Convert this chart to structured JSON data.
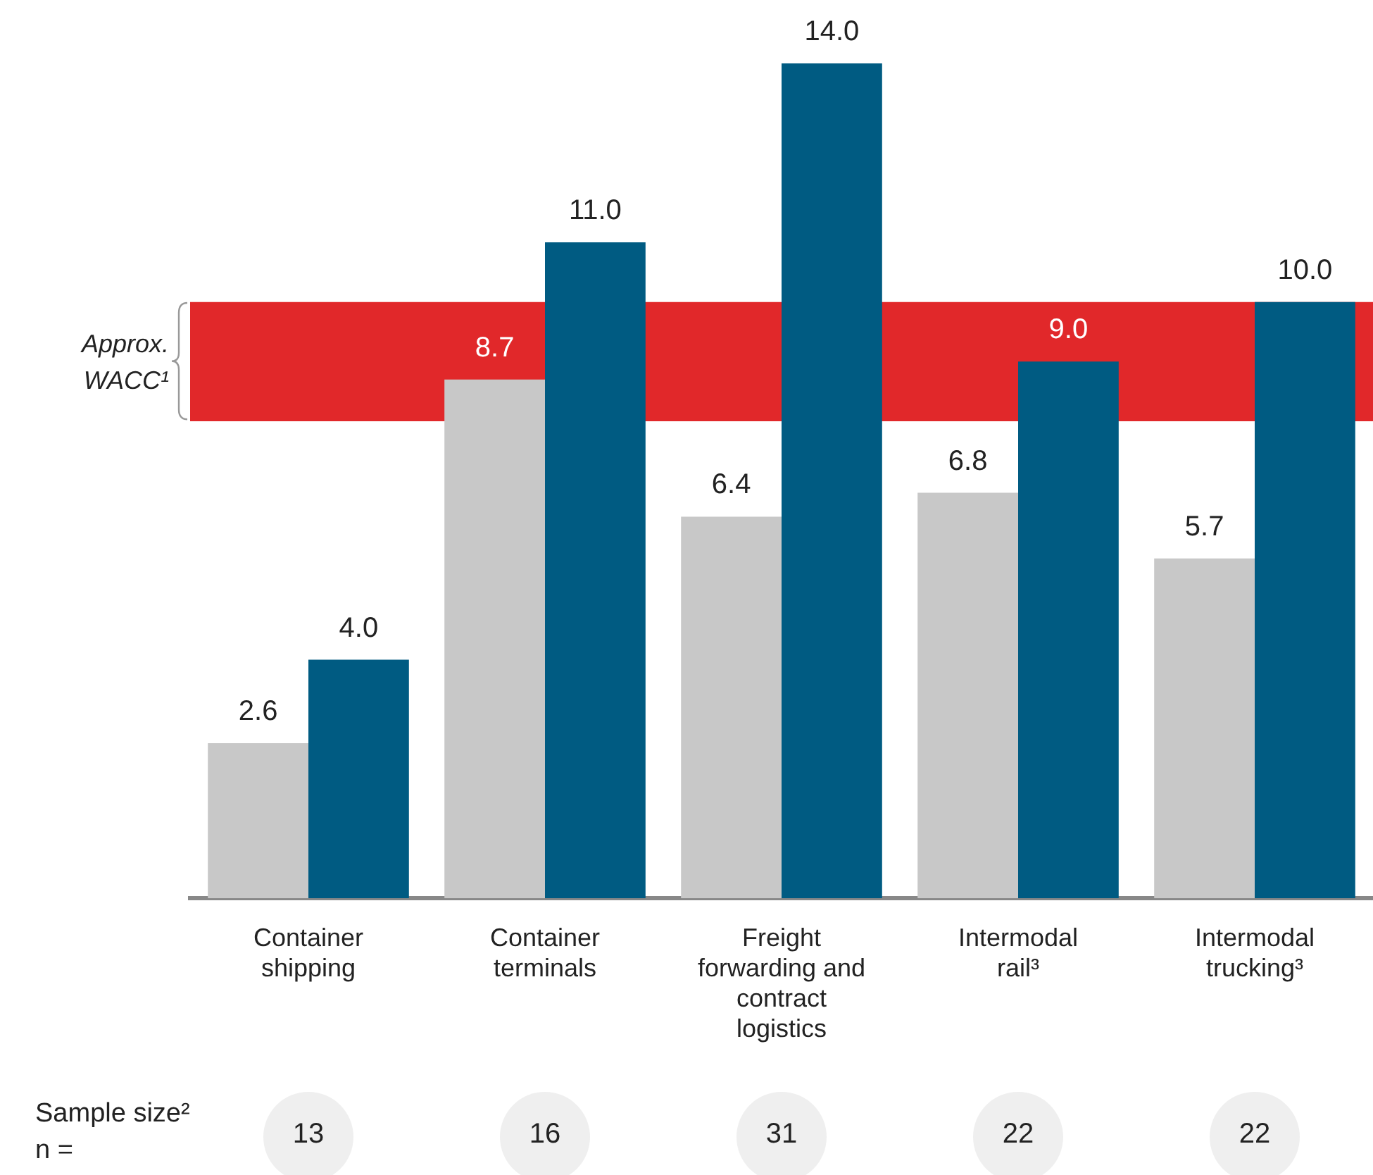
{
  "chart_data": {
    "type": "bar",
    "categories": [
      "Container shipping",
      "Container terminals",
      "Freight forwarding and contract logistics",
      "Intermodal rail³",
      "Intermodal trucking³"
    ],
    "series": [
      {
        "color": "#c8c8c8",
        "values": [
          2.6,
          8.7,
          6.4,
          6.8,
          5.7
        ],
        "value_labels": [
          "2.6",
          "8.7",
          "6.4",
          "6.8",
          "5.7"
        ]
      },
      {
        "color": "#005b82",
        "values": [
          4.0,
          11.0,
          14.0,
          9.0,
          10.0
        ],
        "value_labels": [
          "4.0",
          "11.0",
          "14.0",
          "9.0",
          "10.0"
        ]
      }
    ],
    "tick_labels": "x",
    "grid": false,
    "legend": false,
    "bands": [
      {
        "axis": "y",
        "from": 8,
        "to": 10,
        "label": "Approx. WACC¹",
        "color": "#e1282a"
      }
    ],
    "annotations": [
      "Sample size² n =",
      "13",
      "16",
      "31",
      "22",
      "22"
    ]
  }
}
